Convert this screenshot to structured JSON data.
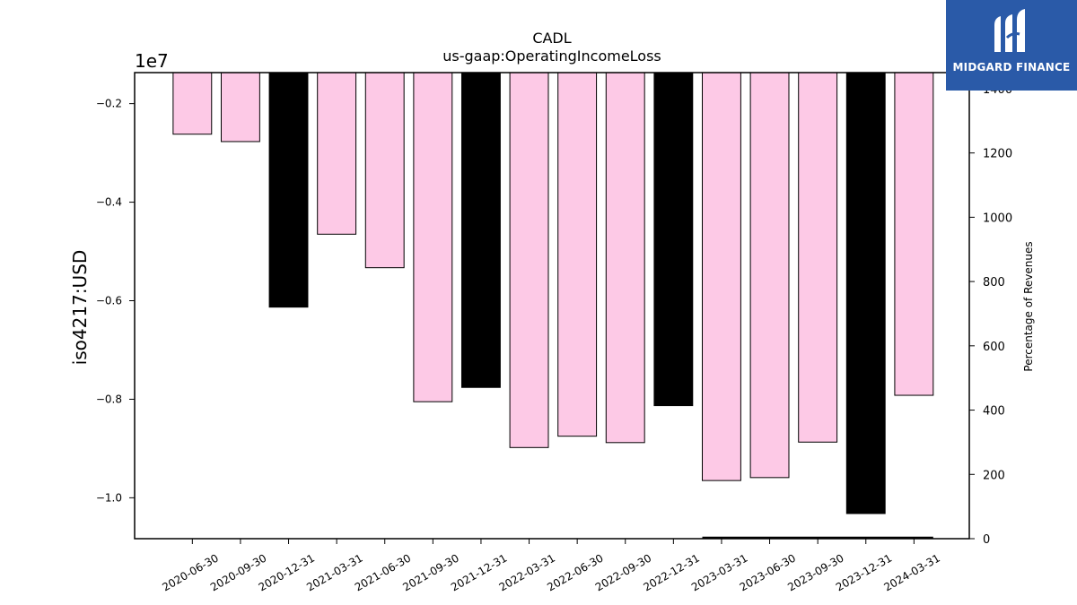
{
  "chart_data": {
    "type": "bar",
    "title": "CADL",
    "subtitle": "us-gaap:OperatingIncomeLoss",
    "ylabel": "iso4217:USD",
    "y_multiplier_label": "1e7",
    "ylim": [
      -10.83,
      -1.37
    ],
    "y_ticks": [
      -0.2,
      -0.4,
      -0.6,
      -0.8,
      -1.0
    ],
    "y_tick_labels": [
      "−0.2",
      "−0.4",
      "−0.6",
      "−0.8",
      "−1.0"
    ],
    "y2label": "Percentage of Revenues",
    "y2lim": [
      0,
      1450
    ],
    "y2_ticks": [
      0,
      200,
      400,
      600,
      800,
      1000,
      1200,
      1400
    ],
    "y2_tick_labels": [
      "0",
      "200",
      "400",
      "600",
      "800",
      "1000",
      "1200",
      "1400"
    ],
    "categories": [
      "2020-06-30",
      "2020-09-30",
      "2020-12-31",
      "2021-03-31",
      "2021-06-30",
      "2021-09-30",
      "2021-12-31",
      "2022-03-31",
      "2022-06-30",
      "2022-09-30",
      "2022-12-31",
      "2023-03-31",
      "2023-06-30",
      "2023-09-30",
      "2023-12-31",
      "2024-03-31"
    ],
    "values": [
      -2.62,
      -2.77,
      -6.13,
      -4.65,
      -5.33,
      -8.05,
      -7.76,
      -8.98,
      -8.75,
      -8.88,
      -8.13,
      -9.65,
      -9.59,
      -8.87,
      -10.32,
      -7.92
    ],
    "bar_colors": [
      "#fdc9e6",
      "#fdc9e6",
      "#000000",
      "#fdc9e6",
      "#fdc9e6",
      "#fdc9e6",
      "#000000",
      "#fdc9e6",
      "#fdc9e6",
      "#fdc9e6",
      "#000000",
      "#fdc9e6",
      "#fdc9e6",
      "#fdc9e6",
      "#000000",
      "#fdc9e6"
    ],
    "percentage_line": {
      "from": "2023-03-31",
      "to": "2024-03-31",
      "value": 0
    }
  },
  "logo": {
    "text": "MIDGARD FINANCE",
    "background": "#2a5aa8"
  }
}
